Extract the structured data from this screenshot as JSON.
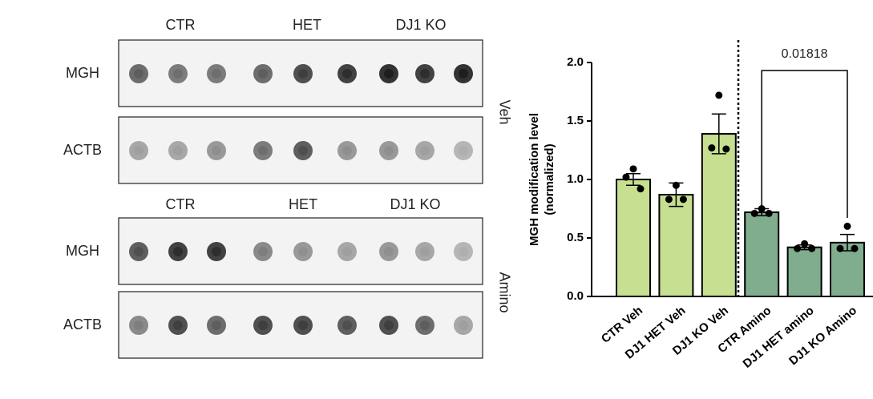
{
  "blots": [
    {
      "condition": "Veh",
      "group_labels": [
        "CTR",
        "HET",
        "DJ1 KO"
      ],
      "rows": [
        "MGH",
        "ACTB"
      ]
    },
    {
      "condition": "Amino",
      "group_labels": [
        "CTR",
        "HET",
        "DJ1 KO"
      ],
      "rows": [
        "MGH",
        "ACTB"
      ]
    }
  ],
  "chart_data": {
    "type": "bar",
    "ylabel": [
      "MGH modification level",
      "(normalized)"
    ],
    "categories": [
      "CTR Veh",
      "DJ1 HET Veh",
      "DJ1 KO Veh",
      "CTR Amino",
      "DJ1 HET amino",
      "DJ1 KO Amino"
    ],
    "values": [
      1.0,
      0.87,
      1.39,
      0.72,
      0.42,
      0.46
    ],
    "errors": [
      0.05,
      0.1,
      0.17,
      0.03,
      0.02,
      0.07
    ],
    "points": [
      [
        1.09,
        1.02,
        0.92
      ],
      [
        0.95,
        0.83,
        0.83
      ],
      [
        1.72,
        1.27,
        1.26
      ],
      [
        0.75,
        0.71,
        0.71
      ],
      [
        0.45,
        0.41,
        0.41
      ],
      [
        0.6,
        0.41,
        0.41
      ]
    ],
    "colors": [
      "#c6df90",
      "#c6df90",
      "#c6df90",
      "#7fad8e",
      "#7fad8e",
      "#7fad8e"
    ],
    "annotation": "0.01818",
    "ylim": [
      0,
      2.0
    ],
    "yticks": [
      {
        "value": 0,
        "label": "0.0"
      },
      0.5,
      {
        "value": 1.0,
        "label": "1.0"
      },
      1.5,
      {
        "value": 2.0,
        "label": "2.0"
      }
    ]
  }
}
